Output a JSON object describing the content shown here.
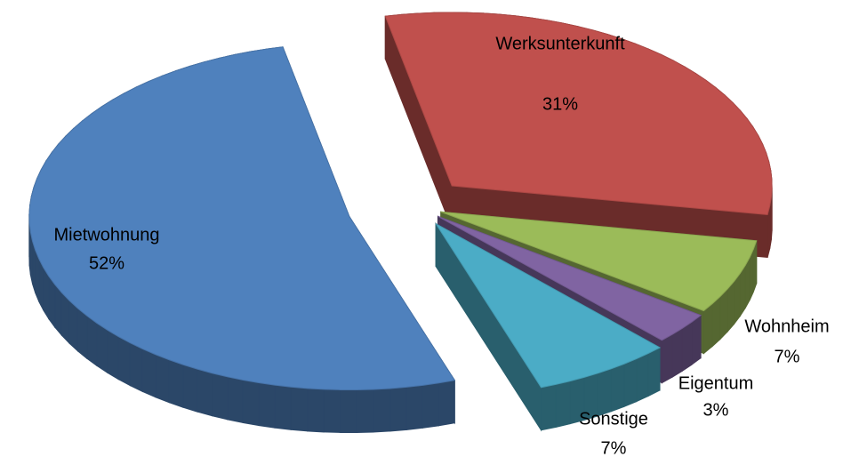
{
  "chart_data": {
    "type": "pie",
    "three_d": true,
    "exploded": true,
    "categories": [
      "Werksunterkunft",
      "Wohnheim",
      "Eigentum",
      "Sonstige",
      "Mietwohnung"
    ],
    "values": [
      31,
      7,
      3,
      7,
      52
    ],
    "value_labels": [
      "31%",
      "7%",
      "3%",
      "7%",
      "52%"
    ],
    "colors": [
      "#c0504d",
      "#9bbb59",
      "#8064a2",
      "#4bacc6",
      "#4f81bd"
    ]
  }
}
